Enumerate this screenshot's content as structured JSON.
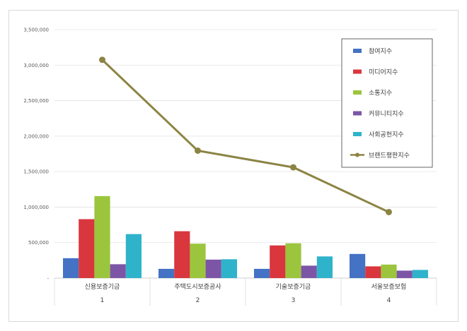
{
  "chart_data": {
    "type": "bar",
    "categories": [
      "신용보증기금",
      "주택도시보증공사",
      "기술보증기금",
      "서울보증보험"
    ],
    "category_numbers": [
      "1",
      "2",
      "3",
      "4"
    ],
    "ylim": [
      0,
      3500000
    ],
    "yticks": [
      0,
      500000,
      1000000,
      1500000,
      2000000,
      2500000,
      3000000,
      3500000
    ],
    "ytick_labels": [
      "-",
      "500,000",
      "1,000,000",
      "1,500,000",
      "2,000,000",
      "2,500,000",
      "3,000,000",
      "3,500,000"
    ],
    "grid": true,
    "legend_position": "top-right",
    "series": [
      {
        "name": "참여지수",
        "kind": "bar",
        "color": "#4472C4",
        "values": [
          280000,
          130000,
          130000,
          340000
        ]
      },
      {
        "name": "미디어지수",
        "kind": "bar",
        "color": "#D9363E",
        "values": [
          830000,
          660000,
          460000,
          165000
        ]
      },
      {
        "name": "소통지수",
        "kind": "bar",
        "color": "#9BC53D",
        "values": [
          1155000,
          485000,
          490000,
          190000
        ]
      },
      {
        "name": "커뮤니티지수",
        "kind": "bar",
        "color": "#7D55A6",
        "values": [
          195000,
          260000,
          175000,
          105000
        ]
      },
      {
        "name": "사회공헌지수",
        "kind": "bar",
        "color": "#2FB3CB",
        "values": [
          620000,
          265000,
          305000,
          115000
        ]
      },
      {
        "name": "브랜드평판지수",
        "kind": "line",
        "color": "#8C8444",
        "values": [
          3075000,
          1795000,
          1560000,
          930000
        ]
      }
    ]
  }
}
